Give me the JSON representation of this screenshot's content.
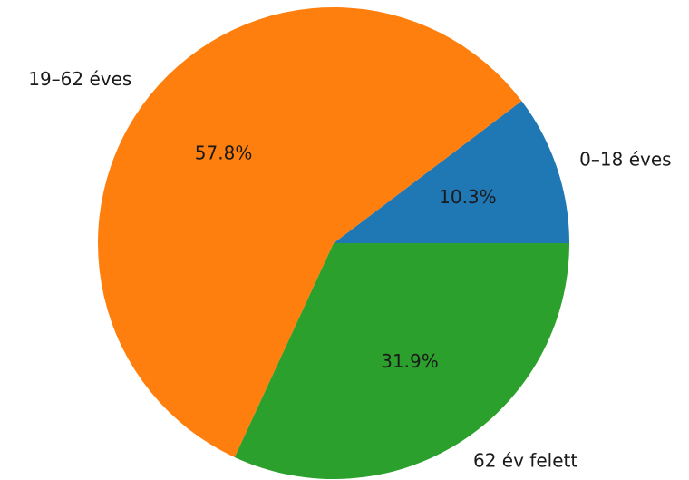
{
  "chart_data": {
    "type": "pie",
    "title": "",
    "slices": [
      {
        "label": "0–18 éves",
        "value": 10.3,
        "pct_label": "10.3%",
        "color": "#1f77b4"
      },
      {
        "label": "19–62 éves",
        "value": 57.8,
        "pct_label": "57.8%",
        "color": "#ff7f0e"
      },
      {
        "label": "62 év felett",
        "value": 31.9,
        "pct_label": "31.9%",
        "color": "#2ca02c"
      }
    ],
    "start_angle_deg": 0,
    "direction": "counterclockwise",
    "legend": "none"
  }
}
